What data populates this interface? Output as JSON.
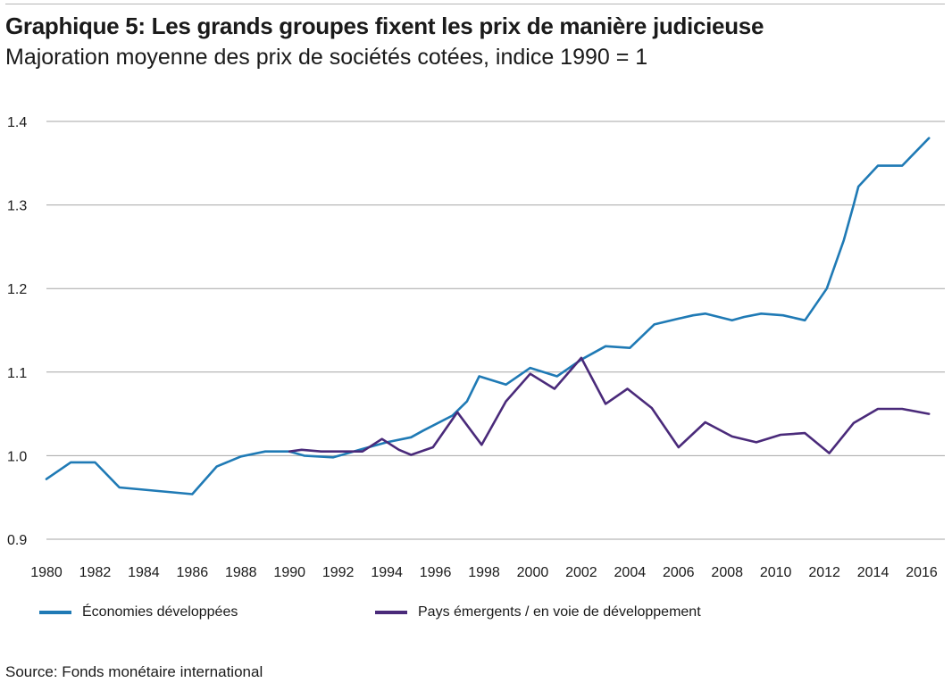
{
  "header": {
    "title": "Graphique 5: Les grands groupes fixent les prix de manière judicieuse",
    "subtitle": "Majoration moyenne des prix de sociétés cotées, indice 1990 = 1"
  },
  "source": "Source: Fonds monétaire international",
  "chart_data": {
    "type": "line",
    "title": "Graphique 5: Les grands groupes fixent les prix de manière judicieuse",
    "subtitle": "Majoration moyenne des prix de sociétés cotées, indice 1990 = 1",
    "xlabel": "",
    "ylabel": "",
    "xlim": [
      1980,
      2016.5
    ],
    "ylim": [
      0.9,
      1.4
    ],
    "x_ticks": [
      1980,
      1982,
      1984,
      1986,
      1988,
      1990,
      1992,
      1994,
      1996,
      1998,
      2000,
      2002,
      2004,
      2006,
      2008,
      2010,
      2012,
      2014,
      2016
    ],
    "y_ticks": [
      0.9,
      1.0,
      1.1,
      1.2,
      1.3,
      1.4
    ],
    "y_tick_labels": [
      "0.9",
      "1.0",
      "1.1",
      "1.2",
      "1.3",
      "1.4"
    ],
    "grid": "horizontal",
    "legend_position": "bottom",
    "series": [
      {
        "name": "Économies développées",
        "color": "#1f7ab5",
        "points": [
          [
            1980,
            0.972
          ],
          [
            1981,
            0.992
          ],
          [
            1982,
            0.992
          ],
          [
            1983,
            0.962
          ],
          [
            1986,
            0.954
          ],
          [
            1987,
            0.987
          ],
          [
            1988,
            0.999
          ],
          [
            1989,
            1.005
          ],
          [
            1990,
            1.005
          ],
          [
            1990.6,
            1.0
          ],
          [
            1991.8,
            0.998
          ],
          [
            1993,
            1.008
          ],
          [
            1994,
            1.016
          ],
          [
            1995,
            1.022
          ],
          [
            1995.5,
            1.03
          ],
          [
            1996.7,
            1.048
          ],
          [
            1997.3,
            1.065
          ],
          [
            1997.8,
            1.095
          ],
          [
            1998.9,
            1.085
          ],
          [
            1999.9,
            1.105
          ],
          [
            2001,
            1.095
          ],
          [
            2002,
            1.115
          ],
          [
            2003,
            1.131
          ],
          [
            2004,
            1.129
          ],
          [
            2005,
            1.157
          ],
          [
            2006,
            1.164
          ],
          [
            2006.6,
            1.168
          ],
          [
            2007.1,
            1.17
          ],
          [
            2008.2,
            1.162
          ],
          [
            2008.7,
            1.166
          ],
          [
            2009.4,
            1.17
          ],
          [
            2010.3,
            1.168
          ],
          [
            2011.2,
            1.162
          ],
          [
            2012.1,
            1.2
          ],
          [
            2012.8,
            1.258
          ],
          [
            2013.2,
            1.3
          ],
          [
            2013.4,
            1.322
          ],
          [
            2014.2,
            1.347
          ],
          [
            2015.2,
            1.347
          ],
          [
            2016.3,
            1.38
          ]
        ]
      },
      {
        "name": "Pays émergents / en voie de développement",
        "color": "#4a2a7a",
        "points": [
          [
            1990,
            1.005
          ],
          [
            1990.5,
            1.007
          ],
          [
            1991.3,
            1.005
          ],
          [
            1992,
            1.005
          ],
          [
            1993,
            1.005
          ],
          [
            1993.8,
            1.02
          ],
          [
            1994.5,
            1.007
          ],
          [
            1995,
            1.001
          ],
          [
            1995.9,
            1.01
          ],
          [
            1996.9,
            1.052
          ],
          [
            1997.9,
            1.013
          ],
          [
            1998.9,
            1.065
          ],
          [
            1999.9,
            1.098
          ],
          [
            2000.9,
            1.08
          ],
          [
            2002,
            1.117
          ],
          [
            2003,
            1.062
          ],
          [
            2003.9,
            1.08
          ],
          [
            2004.9,
            1.057
          ],
          [
            2006,
            1.01
          ],
          [
            2007.1,
            1.04
          ],
          [
            2008.2,
            1.023
          ],
          [
            2009.2,
            1.016
          ],
          [
            2010.2,
            1.025
          ],
          [
            2011.2,
            1.027
          ],
          [
            2012.2,
            1.003
          ],
          [
            2013.2,
            1.039
          ],
          [
            2014.2,
            1.056
          ],
          [
            2015.2,
            1.056
          ],
          [
            2016.3,
            1.05
          ]
        ]
      }
    ]
  }
}
